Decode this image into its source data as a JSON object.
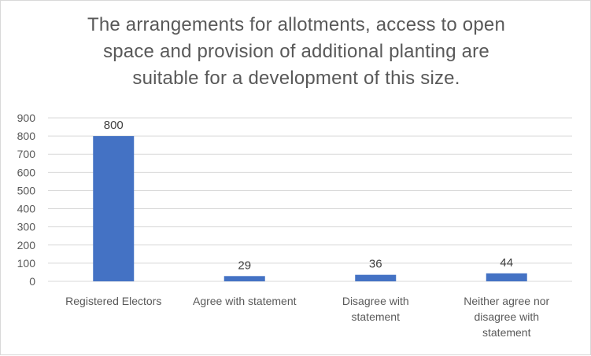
{
  "chart_data": {
    "type": "bar",
    "title": "The arrangements for allotments, access to open space and provision of additional planting are suitable for a development of this size.",
    "title_lines": [
      "The arrangements for allotments, access to open",
      "space and provision of additional planting are",
      "suitable for a development of this size."
    ],
    "categories": [
      "Registered Electors",
      "Agree with statement",
      "Disagree with statement",
      "Neither agree nor disagree with statement"
    ],
    "category_lines": [
      [
        "Registered Electors"
      ],
      [
        "Agree with statement"
      ],
      [
        "Disagree with",
        "statement"
      ],
      [
        "Neither agree nor",
        "disagree with",
        "statement"
      ]
    ],
    "values": [
      800,
      29,
      36,
      44
    ],
    "data_labels": [
      "800",
      "29",
      "36",
      "44"
    ],
    "xlabel": "",
    "ylabel": "",
    "ylim": [
      0,
      900
    ],
    "yticks": [
      0,
      100,
      200,
      300,
      400,
      500,
      600,
      700,
      800,
      900
    ],
    "grid": true,
    "legend": "none",
    "bar_color": "#4472c4",
    "grid_color": "#d9d9d9"
  }
}
